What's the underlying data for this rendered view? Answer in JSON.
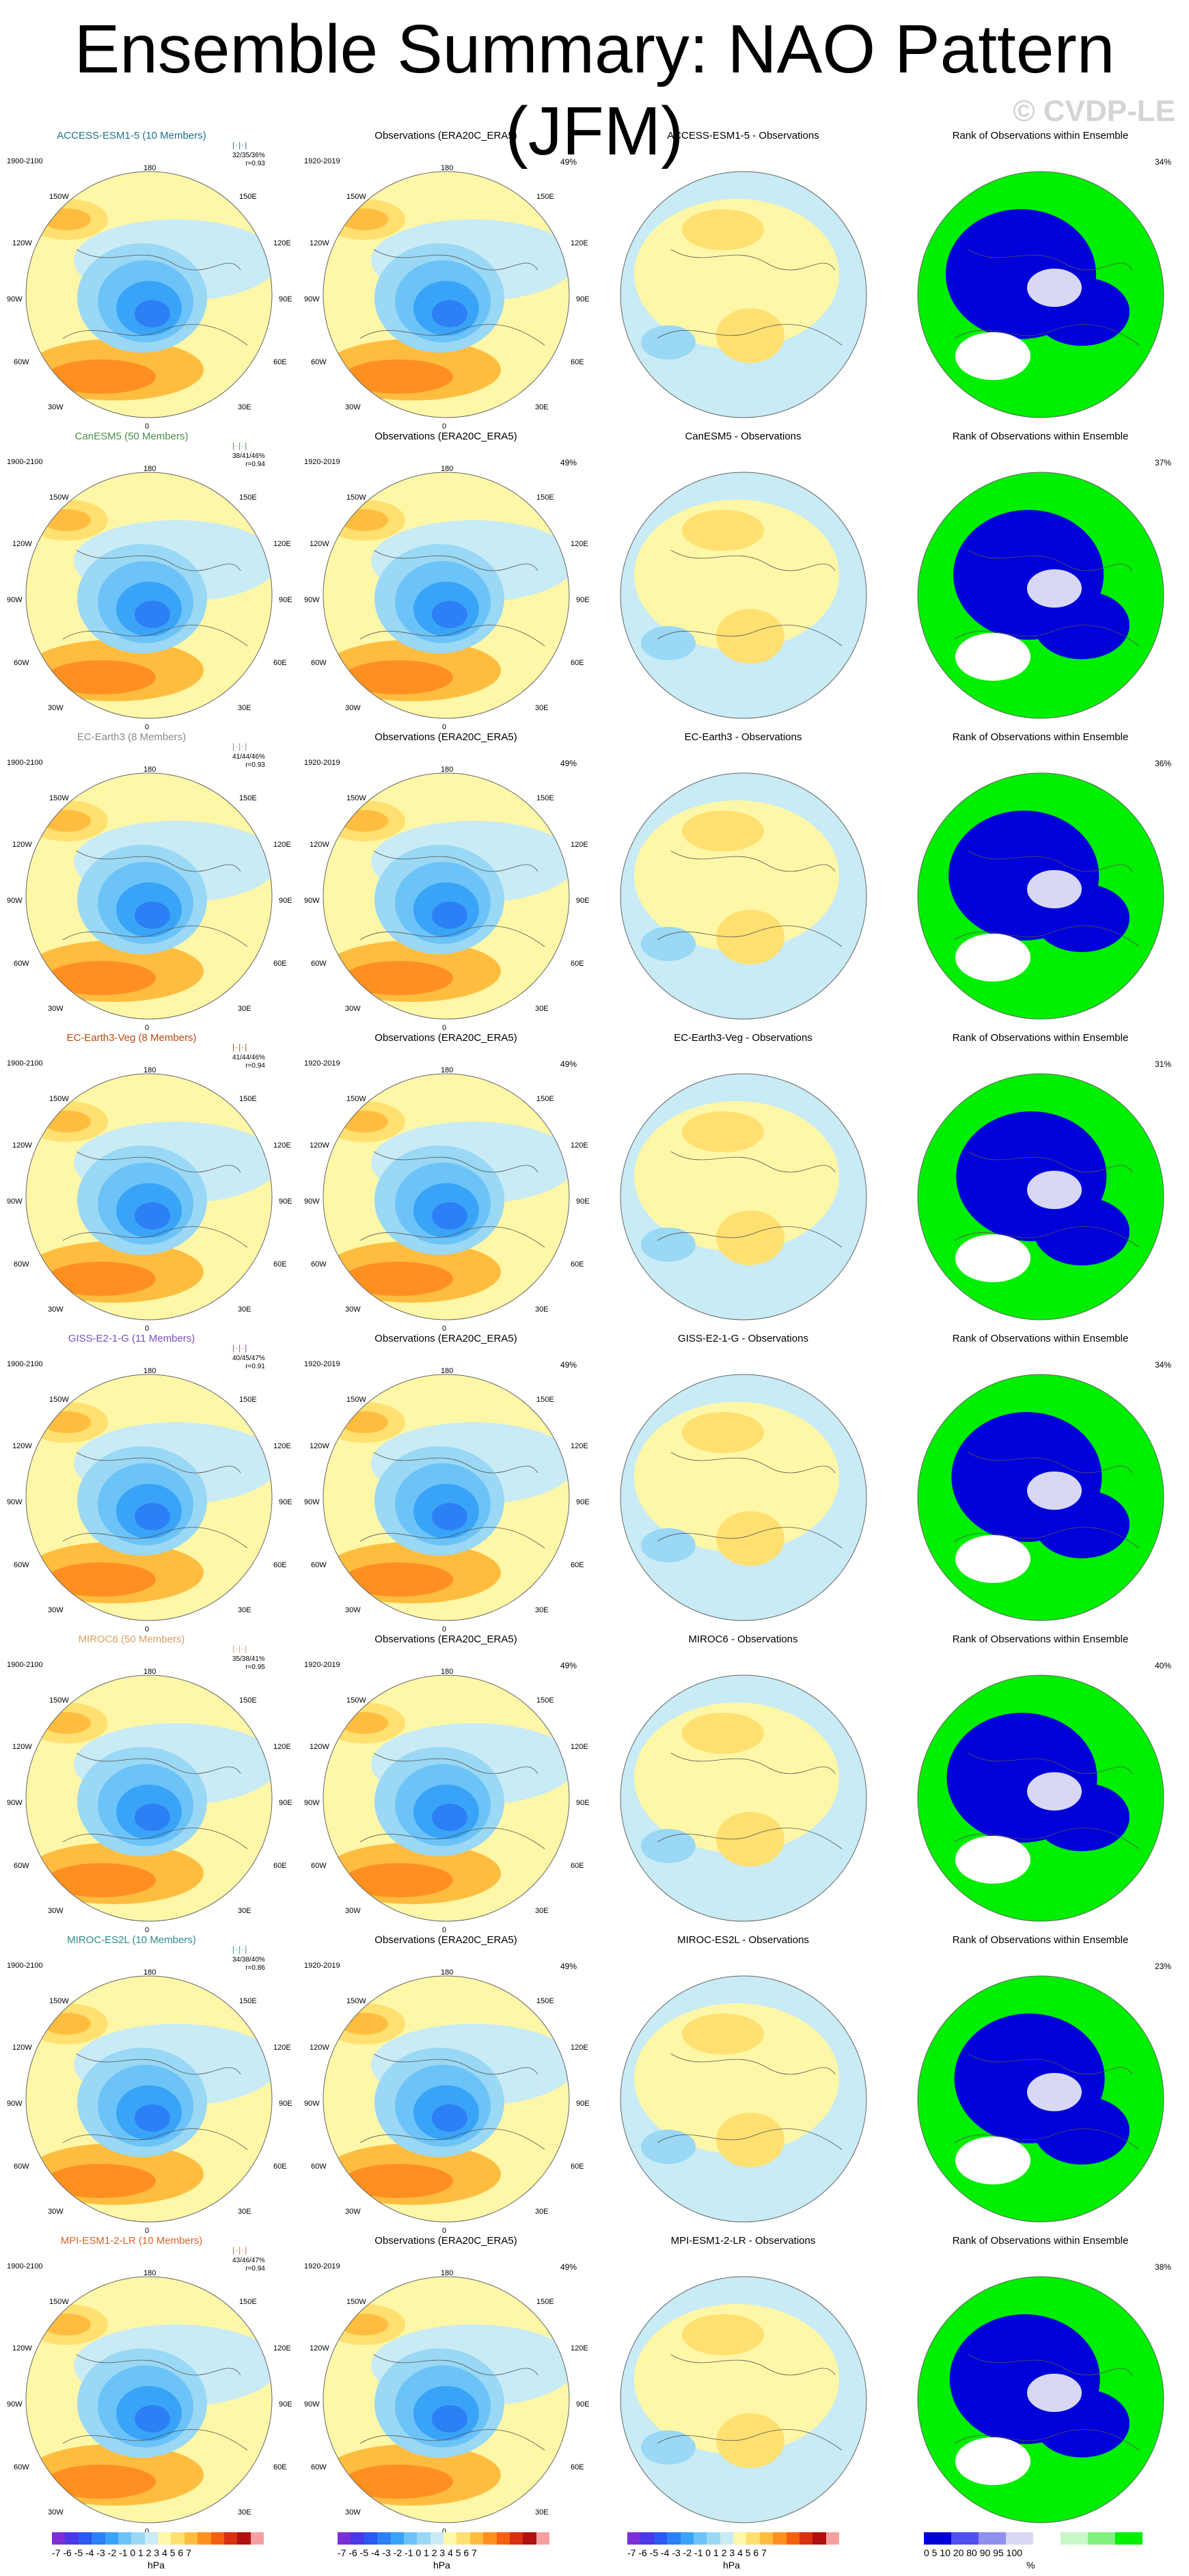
{
  "title": "Ensemble Summary: NAO Pattern (JFM)",
  "watermark": "© CVDP-LE",
  "obs_title": "Observations (ERA20C_ERA5)",
  "rank_title": "Rank of Observations within Ensemble",
  "obs_years": "1920-2019",
  "obs_pct": "49%",
  "lon_labels": {
    "top": "180",
    "bottom": "0",
    "left_mid": "90W",
    "right_mid": "90E",
    "ul1": "150W",
    "ul2": "120W",
    "ll1": "60W",
    "ll2": "30W",
    "ur1": "150E",
    "ur2": "120E",
    "lr1": "60E",
    "lr2": "30E"
  },
  "rows": [
    {
      "model": "ACCESS-ESM1-5 (10 Members)",
      "color": "#1f6f8b",
      "years": "1900-2100",
      "stats": "32/35/36%",
      "r": "r=0.93",
      "diff": "ACCESS-ESM1-5 - Observations",
      "rank_pct": "34%"
    },
    {
      "model": "CanESM5 (50 Members)",
      "color": "#4f8f4f",
      "years": "1900-2100",
      "stats": "38/41/46%",
      "r": "r=0.94",
      "diff": "CanESM5 - Observations",
      "rank_pct": "37%"
    },
    {
      "model": "EC-Earth3 (8 Members)",
      "color": "#888888",
      "years": "1900-2100",
      "stats": "41/44/46%",
      "r": "r=0.93",
      "diff": "EC-Earth3 - Observations",
      "rank_pct": "36%"
    },
    {
      "model": "EC-Earth3-Veg (8 Members)",
      "color": "#b04a10",
      "years": "1900-2100",
      "stats": "41/44/46%",
      "r": "r=0.94",
      "diff": "EC-Earth3-Veg - Observations",
      "rank_pct": "31%"
    },
    {
      "model": "GISS-E2-1-G (11 Members)",
      "color": "#7a4fc0",
      "years": "1900-2100",
      "stats": "40/45/47%",
      "r": "r=0.91",
      "diff": "GISS-E2-1-G - Observations",
      "rank_pct": "34%"
    },
    {
      "model": "MIROC6 (50 Members)",
      "color": "#d9a066",
      "years": "1900-2100",
      "stats": "35/38/41%",
      "r": "r=0.95",
      "diff": "MIROC6 - Observations",
      "rank_pct": "40%"
    },
    {
      "model": "MIROC-ES2L (10 Members)",
      "color": "#2e8b8b",
      "years": "1900-2100",
      "stats": "34/38/40%",
      "r": "r=0.86",
      "diff": "MIROC-ES2L - Observations",
      "rank_pct": "23%"
    },
    {
      "model": "MPI-ESM1-2-LR (10 Members)",
      "color": "#e0622a",
      "years": "1900-2100",
      "stats": "43/46/47%",
      "r": "r=0.94",
      "diff": "MPI-ESM1-2-LR - Observations",
      "rank_pct": "38%"
    }
  ],
  "colorbar": {
    "labels": "-7 -6 -5 -4 -3 -2 -1 0  1  2  3  4  5  6  7",
    "unit": "hPa",
    "colors": [
      "#7b2fd6",
      "#4b38e8",
      "#2a58f0",
      "#2d7ff5",
      "#39a4f7",
      "#6cc3f7",
      "#9ad8f5",
      "#c8ebf5",
      "#fff7a8",
      "#ffe070",
      "#ffbd40",
      "#ff9020",
      "#f56010",
      "#d83010",
      "#b01010",
      "#f4a0a0"
    ]
  },
  "rank_colorbar": {
    "labels": "0   5  10     20     80     90  95 100",
    "unit": "%",
    "colors": [
      "#0000d8",
      "#5050f0",
      "#9090f0",
      "#d8d8f4",
      "#ffffff",
      "#c8f8c8",
      "#80f080",
      "#00f000"
    ]
  }
}
